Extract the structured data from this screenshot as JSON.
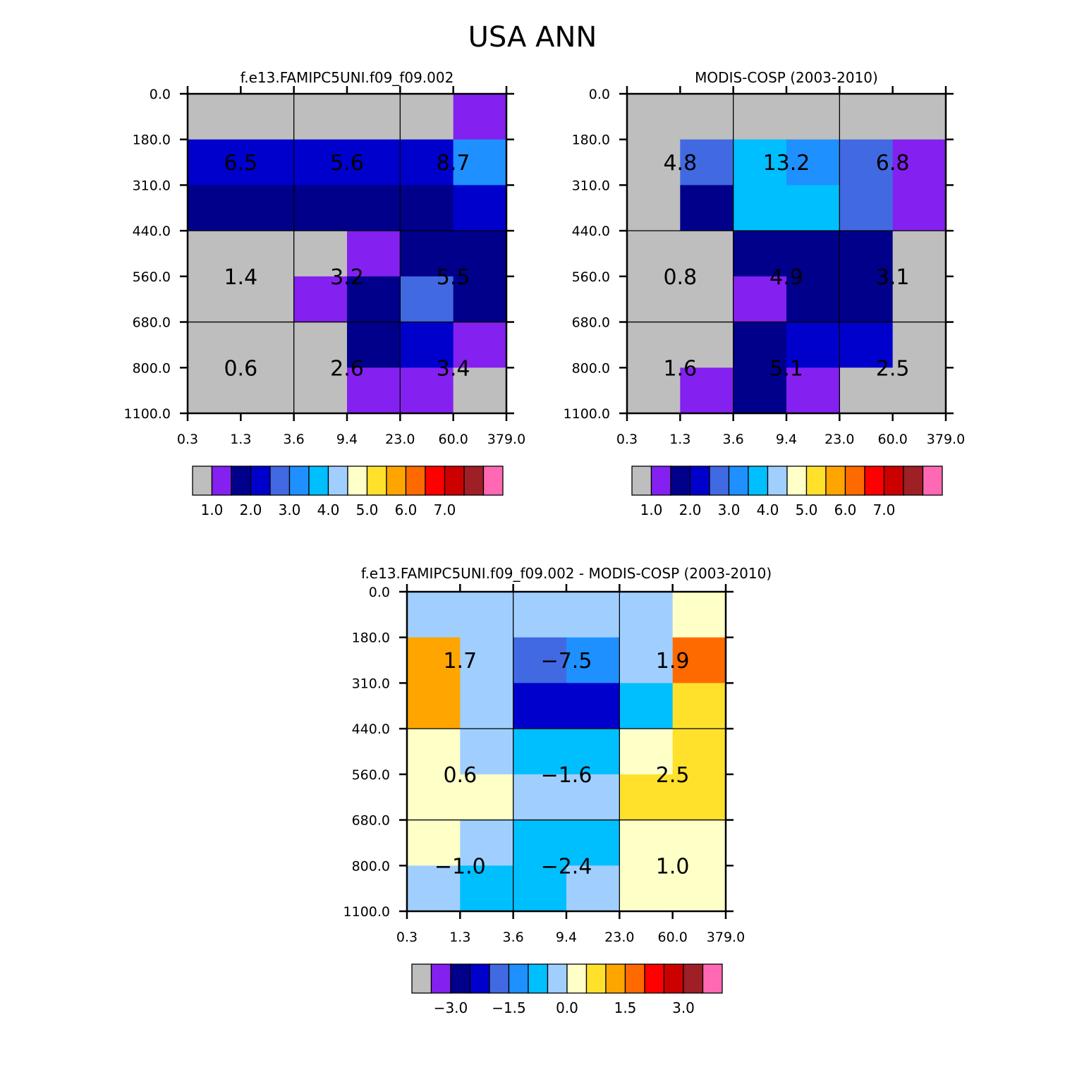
{
  "figure_title": "USA ANN",
  "palette": {
    "absolute": [
      "#bebebe",
      "#8420f0",
      "#00008b",
      "#0000cd",
      "#4169e1",
      "#1e90ff",
      "#00bfff",
      "#a0cfff",
      "#ffffc8",
      "#ffe12c",
      "#ffa500",
      "#ff6a00",
      "#ff0000",
      "#cd0000",
      "#9e1f26",
      "#ff69b4"
    ],
    "difference": [
      "#bebebe",
      "#8420f0",
      "#00008b",
      "#0000cd",
      "#4169e1",
      "#1e90ff",
      "#00bfff",
      "#a0cfff",
      "#ffffc8",
      "#ffe12c",
      "#ffa500",
      "#ff6a00",
      "#ff0000",
      "#cd0000",
      "#9e1f26",
      "#ff69b4"
    ]
  },
  "chart_data": [
    {
      "type": "heatmap",
      "title": "f.e13.FAMIPC5UNI.f09_f09.002",
      "x_tick_labels": [
        "0.3",
        "1.3",
        "3.6",
        "9.4",
        "23.0",
        "60.0",
        "379.0"
      ],
      "y_tick_labels": [
        "0.0",
        "180.0",
        "310.0",
        "440.0",
        "560.0",
        "680.0",
        "800.0",
        "1100.0"
      ],
      "color_index_grid": [
        [
          0,
          0,
          0,
          0,
          0,
          1
        ],
        [
          3,
          3,
          3,
          3,
          3,
          5
        ],
        [
          2,
          2,
          2,
          2,
          2,
          3
        ],
        [
          0,
          0,
          0,
          1,
          2,
          2
        ],
        [
          0,
          0,
          1,
          2,
          4,
          2
        ],
        [
          0,
          0,
          0,
          2,
          3,
          1
        ],
        [
          0,
          0,
          0,
          1,
          1,
          0
        ]
      ],
      "group_labels": [
        {
          "col": 0,
          "row": 0,
          "text": "6.5"
        },
        {
          "col": 1,
          "row": 0,
          "text": "5.6"
        },
        {
          "col": 2,
          "row": 0,
          "text": "8.7"
        },
        {
          "col": 0,
          "row": 1,
          "text": "1.4"
        },
        {
          "col": 1,
          "row": 1,
          "text": "3.2"
        },
        {
          "col": 2,
          "row": 1,
          "text": "5.5"
        },
        {
          "col": 0,
          "row": 2,
          "text": "0.6"
        },
        {
          "col": 1,
          "row": 2,
          "text": "2.6"
        },
        {
          "col": 2,
          "row": 2,
          "text": "3.4"
        }
      ],
      "colorbar": {
        "palette": "absolute",
        "labels": [
          {
            "after_box": 1,
            "text": "1.0"
          },
          {
            "after_box": 3,
            "text": "2.0"
          },
          {
            "after_box": 5,
            "text": "3.0"
          },
          {
            "after_box": 7,
            "text": "4.0"
          },
          {
            "after_box": 9,
            "text": "5.0"
          },
          {
            "after_box": 11,
            "text": "6.0"
          },
          {
            "after_box": 13,
            "text": "7.0"
          }
        ]
      }
    },
    {
      "type": "heatmap",
      "title": "MODIS-COSP (2003-2010)",
      "x_tick_labels": [
        "0.3",
        "1.3",
        "3.6",
        "9.4",
        "23.0",
        "60.0",
        "379.0"
      ],
      "y_tick_labels": [
        "0.0",
        "180.0",
        "310.0",
        "440.0",
        "560.0",
        "680.0",
        "800.0",
        "1100.0"
      ],
      "color_index_grid": [
        [
          0,
          0,
          0,
          0,
          0,
          0
        ],
        [
          0,
          4,
          6,
          5,
          4,
          1
        ],
        [
          0,
          2,
          6,
          6,
          4,
          1
        ],
        [
          0,
          0,
          2,
          2,
          2,
          0
        ],
        [
          0,
          0,
          1,
          2,
          2,
          0
        ],
        [
          0,
          0,
          2,
          3,
          3,
          0
        ],
        [
          0,
          1,
          2,
          1,
          0,
          0
        ]
      ],
      "group_labels": [
        {
          "col": 0,
          "row": 0,
          "text": "4.8"
        },
        {
          "col": 1,
          "row": 0,
          "text": "13.2"
        },
        {
          "col": 2,
          "row": 0,
          "text": "6.8"
        },
        {
          "col": 0,
          "row": 1,
          "text": "0.8"
        },
        {
          "col": 1,
          "row": 1,
          "text": "4.9"
        },
        {
          "col": 2,
          "row": 1,
          "text": "3.1"
        },
        {
          "col": 0,
          "row": 2,
          "text": "1.6"
        },
        {
          "col": 1,
          "row": 2,
          "text": "5.1"
        },
        {
          "col": 2,
          "row": 2,
          "text": "2.5"
        }
      ],
      "colorbar": {
        "palette": "absolute",
        "labels": [
          {
            "after_box": 1,
            "text": "1.0"
          },
          {
            "after_box": 3,
            "text": "2.0"
          },
          {
            "after_box": 5,
            "text": "3.0"
          },
          {
            "after_box": 7,
            "text": "4.0"
          },
          {
            "after_box": 9,
            "text": "5.0"
          },
          {
            "after_box": 11,
            "text": "6.0"
          },
          {
            "after_box": 13,
            "text": "7.0"
          }
        ]
      }
    },
    {
      "type": "heatmap",
      "title": "f.e13.FAMIPC5UNI.f09_f09.002 - MODIS-COSP (2003-2010)",
      "x_tick_labels": [
        "0.3",
        "1.3",
        "3.6",
        "9.4",
        "23.0",
        "60.0",
        "379.0"
      ],
      "y_tick_labels": [
        "0.0",
        "180.0",
        "310.0",
        "440.0",
        "560.0",
        "680.0",
        "800.0",
        "1100.0"
      ],
      "color_index_grid": [
        [
          7,
          7,
          7,
          7,
          7,
          8
        ],
        [
          10,
          7,
          4,
          5,
          7,
          11
        ],
        [
          10,
          7,
          3,
          3,
          6,
          9
        ],
        [
          8,
          7,
          6,
          6,
          8,
          9
        ],
        [
          8,
          8,
          7,
          7,
          9,
          9
        ],
        [
          8,
          7,
          6,
          6,
          8,
          8
        ],
        [
          7,
          6,
          6,
          7,
          8,
          8
        ]
      ],
      "group_labels": [
        {
          "col": 0,
          "row": 0,
          "text": "1.7"
        },
        {
          "col": 1,
          "row": 0,
          "text": "−7.5"
        },
        {
          "col": 2,
          "row": 0,
          "text": "1.9"
        },
        {
          "col": 0,
          "row": 1,
          "text": "0.6"
        },
        {
          "col": 1,
          "row": 1,
          "text": "−1.6"
        },
        {
          "col": 2,
          "row": 1,
          "text": "2.5"
        },
        {
          "col": 0,
          "row": 2,
          "text": "−1.0"
        },
        {
          "col": 1,
          "row": 2,
          "text": "−2.4"
        },
        {
          "col": 2,
          "row": 2,
          "text": "1.0"
        }
      ],
      "colorbar": {
        "palette": "difference",
        "labels": [
          {
            "after_box": 2,
            "text": "−3.0"
          },
          {
            "after_box": 5,
            "text": "−1.5"
          },
          {
            "after_box": 8,
            "text": "0.0"
          },
          {
            "after_box": 11,
            "text": "1.5"
          },
          {
            "after_box": 14,
            "text": "3.0"
          }
        ]
      }
    }
  ]
}
